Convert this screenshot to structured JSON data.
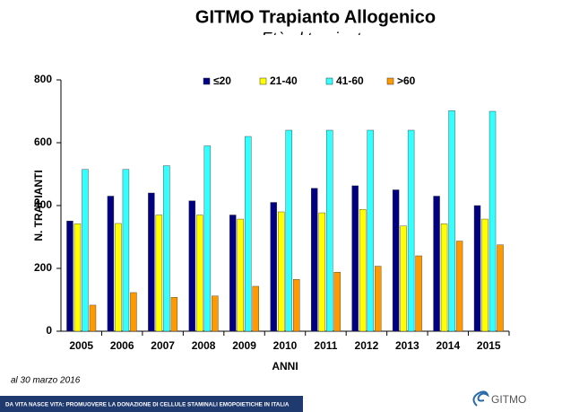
{
  "chart_data": {
    "type": "bar",
    "title": "GITMO Trapianto Allogenico",
    "subtitle": "Età al trapianto",
    "x_label": "ANNI",
    "y_label": "N. TRAPIANTI",
    "categories": [
      "2005",
      "2006",
      "2007",
      "2008",
      "2009",
      "2010",
      "2011",
      "2012",
      "2013",
      "2014",
      "2015"
    ],
    "series": [
      {
        "name": "≤20",
        "color": "#000080",
        "values": [
          351,
          430,
          440,
          415,
          370,
          410,
          455,
          463,
          450,
          430,
          400
        ]
      },
      {
        "name": "21-40",
        "color": "#ffff00",
        "values": [
          342,
          343,
          370,
          370,
          357,
          380,
          377,
          388,
          335,
          342,
          357
        ]
      },
      {
        "name": "41-60",
        "color": "#33ffff",
        "values": [
          515,
          515,
          527,
          590,
          620,
          640,
          640,
          640,
          640,
          702,
          700
        ]
      },
      {
        "name": ">60",
        "color": "#ff9900",
        "values": [
          83,
          123,
          108,
          112,
          143,
          165,
          188,
          207,
          240,
          287,
          275
        ]
      }
    ],
    "ylim": [
      0,
      800
    ],
    "yticks": [
      0,
      200,
      400,
      600,
      800
    ],
    "legend": "top"
  },
  "footer": {
    "note": "al 30 marzo 2016",
    "banner": "DA VITA NASCE VITA: PROMUOVERE LA DONAZIONE DI CELLULE STAMINALI EMOPOIETICHE IN ITALIA",
    "logo": "GITMO"
  }
}
